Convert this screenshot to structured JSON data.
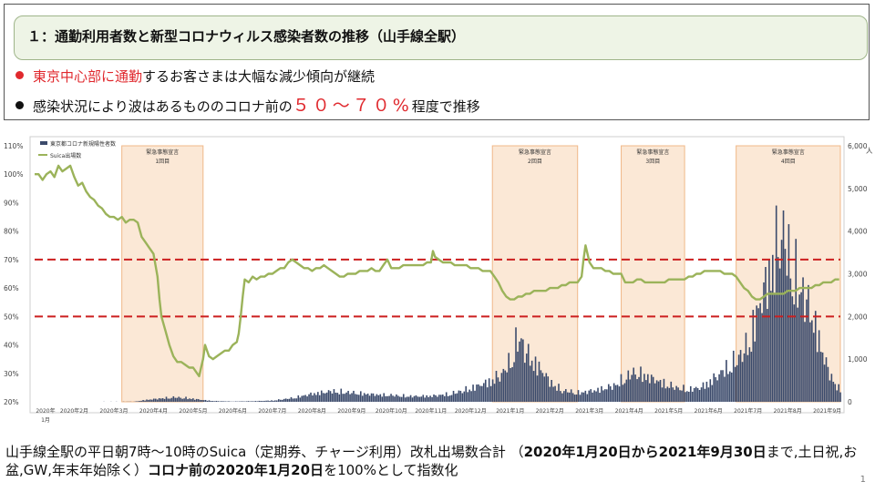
{
  "header": {
    "title": "１：通勤利用者数と新型コロナウィルス感染者数の推移（山手線全駅）"
  },
  "bullets": [
    {
      "red_part": "東京中心部に通勤",
      "rest": "するお客さまは大幅な減少傾向が継続"
    },
    {
      "before": "感染状況により波はあるもののコロナ前の",
      "highlight": "５０～７０%",
      "after": "程度で推移"
    }
  ],
  "colors": {
    "bullet1": "#e0292e",
    "bullet2": "#111111",
    "suica_line": "#9bb35a",
    "covid_bars": "#3b4a6b",
    "emergency_fill": "#fbe8d6",
    "emergency_border": "#f0b888",
    "ref_lines": "#cc1f1f"
  },
  "footer": {
    "p1": "山手線全駅の平日朝7時～10時のSuica（定期券、チャージ利用）改札出場数合計 （",
    "b1": "2020年1月20日から2021年9月30日",
    "p2": "まで,土日祝,お盆,GW,年末年始除く）",
    "b2": "コロナ前の2020年1月20日",
    "p3": "を100%として指数化"
  },
  "page_number": "1",
  "chart_data": {
    "type": "line",
    "legend": [
      "東京都コロナ新規陽性者数",
      "Suica出場数"
    ],
    "left_axis": {
      "ticks": [
        "110%",
        "100%",
        "90%",
        "80%",
        "70%",
        "60%",
        "50%",
        "40%",
        "30%",
        "20%"
      ],
      "range": [
        20,
        110
      ]
    },
    "right_axis": {
      "ticks": [
        "6,000",
        "5,000",
        "4,000",
        "3,000",
        "2,000",
        "1,000",
        "0"
      ],
      "range": [
        0,
        6000
      ],
      "unit_label": "人"
    },
    "x_ticks": [
      "2020年\n1月",
      "2020年2月",
      "2020年3月",
      "2020年4月",
      "2020年5月",
      "2020年6月",
      "2020年7月",
      "2020年8月",
      "2020年9月",
      "2020年10月",
      "2020年11月",
      "2020年12月",
      "2021年1月",
      "2021年2月",
      "2021年3月",
      "2021年4月",
      "2021年5月",
      "2021年6月",
      "2021年7月",
      "2021年8月",
      "2021年9月"
    ],
    "x_range": [
      0,
      20.33
    ],
    "reference_lines": [
      70,
      50
    ],
    "emergency_periods": [
      {
        "label1": "緊急事態宣言",
        "label2": "1回目",
        "start": 2.2,
        "end": 4.25
      },
      {
        "label1": "緊急事態宣言",
        "label2": "2回目",
        "start": 11.55,
        "end": 13.7
      },
      {
        "label1": "緊急事態宣言",
        "label2": "3回目",
        "start": 14.8,
        "end": 16.4
      },
      {
        "label1": "緊急事態宣言",
        "label2": "4回目",
        "start": 17.7,
        "end": 20.33
      }
    ],
    "suica_series": {
      "name": "Suica出場数",
      "points": [
        [
          0,
          100
        ],
        [
          0.1,
          100
        ],
        [
          0.2,
          98
        ],
        [
          0.3,
          100
        ],
        [
          0.4,
          101
        ],
        [
          0.5,
          99
        ],
        [
          0.6,
          103
        ],
        [
          0.7,
          101
        ],
        [
          0.8,
          102
        ],
        [
          0.9,
          103
        ],
        [
          1.0,
          99
        ],
        [
          1.1,
          96
        ],
        [
          1.2,
          97
        ],
        [
          1.3,
          94
        ],
        [
          1.4,
          92
        ],
        [
          1.5,
          91
        ],
        [
          1.6,
          89
        ],
        [
          1.7,
          88
        ],
        [
          1.8,
          86
        ],
        [
          1.9,
          85
        ],
        [
          2.0,
          85
        ],
        [
          2.1,
          84
        ],
        [
          2.2,
          85
        ],
        [
          2.3,
          83
        ],
        [
          2.4,
          84
        ],
        [
          2.5,
          84
        ],
        [
          2.6,
          83
        ],
        [
          2.7,
          78
        ],
        [
          2.8,
          76
        ],
        [
          2.9,
          74
        ],
        [
          3.0,
          72
        ],
        [
          3.05,
          68
        ],
        [
          3.1,
          64
        ],
        [
          3.15,
          56
        ],
        [
          3.2,
          50
        ],
        [
          3.3,
          45
        ],
        [
          3.4,
          40
        ],
        [
          3.5,
          36
        ],
        [
          3.6,
          34
        ],
        [
          3.7,
          34
        ],
        [
          3.8,
          33
        ],
        [
          3.9,
          32
        ],
        [
          4.0,
          32
        ],
        [
          4.1,
          30
        ],
        [
          4.15,
          29
        ],
        [
          4.2,
          32
        ],
        [
          4.25,
          35
        ],
        [
          4.3,
          40
        ],
        [
          4.35,
          38
        ],
        [
          4.4,
          36
        ],
        [
          4.5,
          35
        ],
        [
          4.6,
          36
        ],
        [
          4.7,
          37
        ],
        [
          4.8,
          38
        ],
        [
          4.9,
          38
        ],
        [
          5.0,
          40
        ],
        [
          5.1,
          41
        ],
        [
          5.15,
          44
        ],
        [
          5.2,
          50
        ],
        [
          5.25,
          57
        ],
        [
          5.3,
          63
        ],
        [
          5.4,
          62
        ],
        [
          5.5,
          64
        ],
        [
          5.6,
          63
        ],
        [
          5.7,
          64
        ],
        [
          5.8,
          64
        ],
        [
          5.9,
          65
        ],
        [
          6.0,
          65
        ],
        [
          6.1,
          66
        ],
        [
          6.2,
          67
        ],
        [
          6.3,
          67
        ],
        [
          6.4,
          69
        ],
        [
          6.5,
          70
        ],
        [
          6.6,
          69
        ],
        [
          6.7,
          68
        ],
        [
          6.8,
          67
        ],
        [
          6.9,
          67
        ],
        [
          7.0,
          66
        ],
        [
          7.1,
          67
        ],
        [
          7.2,
          67
        ],
        [
          7.3,
          68
        ],
        [
          7.4,
          67
        ],
        [
          7.5,
          66
        ],
        [
          7.6,
          65
        ],
        [
          7.7,
          64
        ],
        [
          7.8,
          64
        ],
        [
          7.9,
          65
        ],
        [
          8.0,
          65
        ],
        [
          8.1,
          65
        ],
        [
          8.2,
          66
        ],
        [
          8.3,
          66
        ],
        [
          8.4,
          66
        ],
        [
          8.5,
          67
        ],
        [
          8.6,
          66
        ],
        [
          8.7,
          66
        ],
        [
          8.8,
          68
        ],
        [
          8.9,
          70
        ],
        [
          9.0,
          67
        ],
        [
          9.1,
          67
        ],
        [
          9.2,
          67
        ],
        [
          9.3,
          68
        ],
        [
          9.4,
          68
        ],
        [
          9.5,
          68
        ],
        [
          9.6,
          68
        ],
        [
          9.7,
          68
        ],
        [
          9.8,
          68
        ],
        [
          9.9,
          69
        ],
        [
          10.0,
          69
        ],
        [
          10.05,
          73
        ],
        [
          10.1,
          71
        ],
        [
          10.2,
          70
        ],
        [
          10.3,
          69
        ],
        [
          10.4,
          69
        ],
        [
          10.5,
          69
        ],
        [
          10.6,
          68
        ],
        [
          10.7,
          68
        ],
        [
          10.8,
          68
        ],
        [
          10.9,
          68
        ],
        [
          11.0,
          67
        ],
        [
          11.1,
          67
        ],
        [
          11.2,
          67
        ],
        [
          11.3,
          66
        ],
        [
          11.4,
          66
        ],
        [
          11.5,
          66
        ],
        [
          11.6,
          64
        ],
        [
          11.7,
          62
        ],
        [
          11.8,
          59
        ],
        [
          11.9,
          57
        ],
        [
          12.0,
          56
        ],
        [
          12.1,
          56
        ],
        [
          12.2,
          57
        ],
        [
          12.3,
          57
        ],
        [
          12.4,
          58
        ],
        [
          12.5,
          58
        ],
        [
          12.6,
          59
        ],
        [
          12.7,
          59
        ],
        [
          12.8,
          59
        ],
        [
          12.9,
          59
        ],
        [
          13.0,
          60
        ],
        [
          13.1,
          60
        ],
        [
          13.2,
          60
        ],
        [
          13.3,
          61
        ],
        [
          13.4,
          61
        ],
        [
          13.5,
          62
        ],
        [
          13.6,
          62
        ],
        [
          13.7,
          62
        ],
        [
          13.8,
          64
        ],
        [
          13.85,
          70
        ],
        [
          13.9,
          75
        ],
        [
          13.95,
          72
        ],
        [
          14.0,
          69
        ],
        [
          14.1,
          67
        ],
        [
          14.2,
          67
        ],
        [
          14.3,
          67
        ],
        [
          14.4,
          66
        ],
        [
          14.5,
          66
        ],
        [
          14.6,
          65
        ],
        [
          14.7,
          65
        ],
        [
          14.8,
          65
        ],
        [
          14.9,
          62
        ],
        [
          15.0,
          62
        ],
        [
          15.1,
          62
        ],
        [
          15.2,
          63
        ],
        [
          15.3,
          63
        ],
        [
          15.4,
          62
        ],
        [
          15.5,
          62
        ],
        [
          15.6,
          62
        ],
        [
          15.7,
          62
        ],
        [
          15.8,
          62
        ],
        [
          15.9,
          62
        ],
        [
          16.0,
          63
        ],
        [
          16.1,
          63
        ],
        [
          16.2,
          63
        ],
        [
          16.3,
          63
        ],
        [
          16.4,
          63
        ],
        [
          16.5,
          64
        ],
        [
          16.6,
          64
        ],
        [
          16.7,
          65
        ],
        [
          16.8,
          65
        ],
        [
          16.9,
          66
        ],
        [
          17.0,
          66
        ],
        [
          17.1,
          66
        ],
        [
          17.2,
          66
        ],
        [
          17.3,
          66
        ],
        [
          17.4,
          65
        ],
        [
          17.5,
          65
        ],
        [
          17.6,
          65
        ],
        [
          17.7,
          64
        ],
        [
          17.8,
          62
        ],
        [
          17.9,
          60
        ],
        [
          18.0,
          59
        ],
        [
          18.1,
          57
        ],
        [
          18.2,
          56
        ],
        [
          18.3,
          56
        ],
        [
          18.4,
          57
        ],
        [
          18.5,
          58
        ],
        [
          18.6,
          58
        ],
        [
          18.7,
          58
        ],
        [
          18.8,
          58
        ],
        [
          18.9,
          58
        ],
        [
          19.0,
          59
        ],
        [
          19.1,
          59
        ],
        [
          19.2,
          59
        ],
        [
          19.3,
          60
        ],
        [
          19.4,
          60
        ],
        [
          19.5,
          60
        ],
        [
          19.6,
          60
        ],
        [
          19.7,
          61
        ],
        [
          19.8,
          61
        ],
        [
          19.9,
          62
        ],
        [
          20.0,
          62
        ],
        [
          20.1,
          62
        ],
        [
          20.2,
          63
        ],
        [
          20.3,
          63
        ]
      ]
    },
    "covid_series": {
      "name": "東京都コロナ新規陽性者数",
      "anchors": [
        [
          0,
          0
        ],
        [
          2.5,
          5
        ],
        [
          2.8,
          60
        ],
        [
          3.2,
          110
        ],
        [
          3.5,
          140
        ],
        [
          3.8,
          120
        ],
        [
          4.2,
          60
        ],
        [
          4.5,
          25
        ],
        [
          5.0,
          10
        ],
        [
          5.5,
          20
        ],
        [
          6.0,
          40
        ],
        [
          6.5,
          120
        ],
        [
          7.0,
          250
        ],
        [
          7.5,
          330
        ],
        [
          8.0,
          280
        ],
        [
          8.5,
          230
        ],
        [
          9.0,
          200
        ],
        [
          9.5,
          170
        ],
        [
          10.0,
          180
        ],
        [
          10.5,
          250
        ],
        [
          11.0,
          420
        ],
        [
          11.5,
          650
        ],
        [
          11.8,
          900
        ],
        [
          12.0,
          1300
        ],
        [
          12.1,
          1700
        ],
        [
          12.2,
          2000
        ],
        [
          12.3,
          1800
        ],
        [
          12.4,
          1500
        ],
        [
          12.6,
          1200
        ],
        [
          12.8,
          950
        ],
        [
          13.0,
          600
        ],
        [
          13.3,
          350
        ],
        [
          13.7,
          280
        ],
        [
          14.0,
          330
        ],
        [
          14.3,
          400
        ],
        [
          14.6,
          500
        ],
        [
          14.9,
          750
        ],
        [
          15.1,
          900
        ],
        [
          15.3,
          850
        ],
        [
          15.6,
          700
        ],
        [
          15.9,
          550
        ],
        [
          16.2,
          430
        ],
        [
          16.5,
          380
        ],
        [
          16.8,
          450
        ],
        [
          17.1,
          700
        ],
        [
          17.4,
          1000
        ],
        [
          17.7,
          1300
        ],
        [
          18.0,
          1800
        ],
        [
          18.2,
          2700
        ],
        [
          18.4,
          3500
        ],
        [
          18.6,
          4300
        ],
        [
          18.7,
          4800
        ],
        [
          18.8,
          5300
        ],
        [
          18.9,
          5000
        ],
        [
          19.0,
          4500
        ],
        [
          19.2,
          3800
        ],
        [
          19.4,
          3300
        ],
        [
          19.6,
          2700
        ],
        [
          19.8,
          1800
        ],
        [
          20.0,
          1000
        ],
        [
          20.2,
          500
        ],
        [
          20.33,
          350
        ]
      ]
    }
  }
}
